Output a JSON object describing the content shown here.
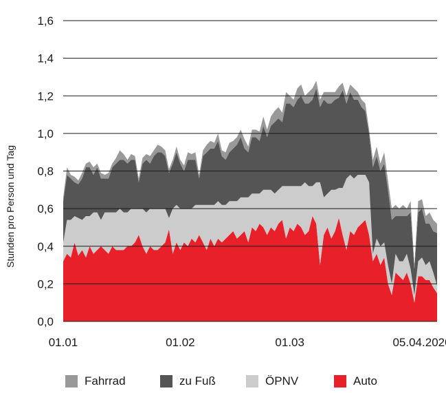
{
  "chart_data": {
    "type": "area",
    "stacked": true,
    "ylabel": "Stunden pro Person und Tag",
    "xlabel": "",
    "ylim": [
      0,
      1.6
    ],
    "yticks": [
      "0,0",
      "0,2",
      "0,4",
      "0,6",
      "0,8",
      "1,0",
      "1,2",
      "1,4",
      "1,6"
    ],
    "ytick_values": [
      0,
      0.2,
      0.4,
      0.6,
      0.8,
      1.0,
      1.2,
      1.4,
      1.6
    ],
    "xticks": [
      {
        "label": "01.01",
        "index": 0
      },
      {
        "label": "01.02",
        "index": 31
      },
      {
        "label": "01.03",
        "index": 60
      },
      {
        "label": "05.04.2020",
        "index": 95
      }
    ],
    "grid": true,
    "legend_position": "bottom",
    "series": [
      {
        "name": "Auto",
        "color": "#e8202a",
        "values": [
          0.32,
          0.36,
          0.34,
          0.42,
          0.35,
          0.38,
          0.34,
          0.4,
          0.36,
          0.38,
          0.4,
          0.38,
          0.36,
          0.4,
          0.38,
          0.38,
          0.38,
          0.4,
          0.4,
          0.42,
          0.46,
          0.4,
          0.36,
          0.4,
          0.38,
          0.38,
          0.4,
          0.42,
          0.49,
          0.36,
          0.42,
          0.38,
          0.42,
          0.4,
          0.44,
          0.42,
          0.46,
          0.42,
          0.38,
          0.44,
          0.4,
          0.44,
          0.42,
          0.44,
          0.46,
          0.48,
          0.44,
          0.46,
          0.48,
          0.42,
          0.5,
          0.48,
          0.52,
          0.5,
          0.46,
          0.5,
          0.48,
          0.52,
          0.54,
          0.44,
          0.5,
          0.48,
          0.52,
          0.5,
          0.46,
          0.48,
          0.56,
          0.52,
          0.3,
          0.46,
          0.5,
          0.44,
          0.48,
          0.55,
          0.46,
          0.38,
          0.48,
          0.46,
          0.5,
          0.52,
          0.54,
          0.46,
          0.32,
          0.36,
          0.3,
          0.34,
          0.2,
          0.14,
          0.26,
          0.24,
          0.22,
          0.26,
          0.2,
          0.1,
          0.24,
          0.24,
          0.22,
          0.22,
          0.18,
          0.15
        ]
      },
      {
        "name": "ÖPNV",
        "color": "#cccccc",
        "values": [
          0.1,
          0.18,
          0.2,
          0.14,
          0.2,
          0.16,
          0.22,
          0.16,
          0.22,
          0.2,
          0.14,
          0.2,
          0.22,
          0.18,
          0.2,
          0.22,
          0.2,
          0.18,
          0.2,
          0.18,
          0.14,
          0.2,
          0.22,
          0.2,
          0.22,
          0.22,
          0.2,
          0.18,
          0.06,
          0.24,
          0.2,
          0.22,
          0.18,
          0.2,
          0.16,
          0.2,
          0.16,
          0.2,
          0.24,
          0.18,
          0.22,
          0.2,
          0.2,
          0.18,
          0.18,
          0.16,
          0.2,
          0.2,
          0.18,
          0.24,
          0.18,
          0.2,
          0.16,
          0.2,
          0.24,
          0.2,
          0.2,
          0.18,
          0.18,
          0.28,
          0.22,
          0.24,
          0.2,
          0.22,
          0.28,
          0.24,
          0.16,
          0.22,
          0.44,
          0.2,
          0.18,
          0.26,
          0.22,
          0.16,
          0.25,
          0.38,
          0.3,
          0.3,
          0.28,
          0.26,
          0.24,
          0.28,
          0.04,
          0.08,
          0.1,
          0.08,
          0.1,
          0.06,
          0.1,
          0.08,
          0.1,
          0.1,
          0.08,
          0.04,
          0.08,
          0.1,
          0.08,
          0.1,
          0.08,
          0.04
        ]
      },
      {
        "name": "zu Fuß",
        "color": "#555555",
        "values": [
          0.22,
          0.24,
          0.22,
          0.18,
          0.18,
          0.22,
          0.26,
          0.26,
          0.2,
          0.24,
          0.22,
          0.18,
          0.18,
          0.24,
          0.26,
          0.26,
          0.28,
          0.26,
          0.26,
          0.26,
          0.14,
          0.24,
          0.28,
          0.24,
          0.28,
          0.3,
          0.3,
          0.28,
          0.24,
          0.24,
          0.28,
          0.24,
          0.2,
          0.26,
          0.26,
          0.24,
          0.14,
          0.26,
          0.28,
          0.3,
          0.3,
          0.32,
          0.26,
          0.24,
          0.26,
          0.28,
          0.3,
          0.32,
          0.26,
          0.24,
          0.3,
          0.3,
          0.28,
          0.34,
          0.28,
          0.34,
          0.38,
          0.38,
          0.34,
          0.44,
          0.44,
          0.42,
          0.46,
          0.48,
          0.42,
          0.44,
          0.46,
          0.5,
          0.4,
          0.52,
          0.48,
          0.46,
          0.48,
          0.48,
          0.52,
          0.4,
          0.44,
          0.42,
          0.4,
          0.36,
          0.34,
          0.26,
          0.46,
          0.44,
          0.4,
          0.42,
          0.4,
          0.34,
          0.2,
          0.24,
          0.24,
          0.2,
          0.3,
          0.14,
          0.26,
          0.26,
          0.22,
          0.2,
          0.22,
          0.28
        ]
      },
      {
        "name": "Fahrrad",
        "color": "#999999",
        "values": [
          0.02,
          0.04,
          0.02,
          0.03,
          0.02,
          0.03,
          0.02,
          0.03,
          0.04,
          0.02,
          0.03,
          0.02,
          0.03,
          0.02,
          0.03,
          0.05,
          0.03,
          0.02,
          0.03,
          0.02,
          0.02,
          0.03,
          0.03,
          0.04,
          0.03,
          0.04,
          0.03,
          0.03,
          0.02,
          0.02,
          0.03,
          0.02,
          0.03,
          0.04,
          0.03,
          0.04,
          0.02,
          0.03,
          0.04,
          0.04,
          0.03,
          0.04,
          0.03,
          0.04,
          0.05,
          0.04,
          0.04,
          0.04,
          0.05,
          0.03,
          0.04,
          0.04,
          0.05,
          0.05,
          0.04,
          0.05,
          0.06,
          0.06,
          0.05,
          0.06,
          0.04,
          0.04,
          0.06,
          0.06,
          0.04,
          0.06,
          0.06,
          0.04,
          0.04,
          0.04,
          0.06,
          0.06,
          0.04,
          0.06,
          0.04,
          0.04,
          0.04,
          0.06,
          0.04,
          0.04,
          0.04,
          0.02,
          0.04,
          0.05,
          0.04,
          0.06,
          0.05,
          0.06,
          0.06,
          0.04,
          0.06,
          0.04,
          0.06,
          0.02,
          0.06,
          0.05,
          0.04,
          0.06,
          0.06,
          0.05
        ]
      }
    ]
  }
}
